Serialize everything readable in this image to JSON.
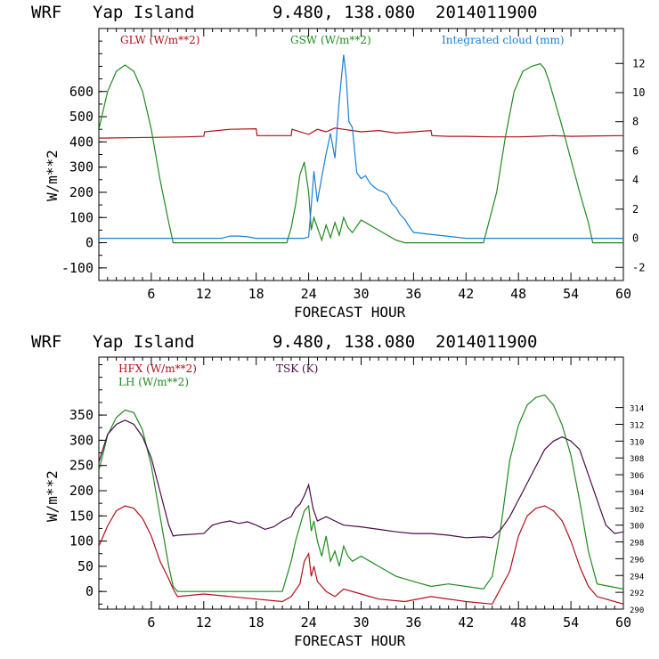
{
  "colors": {
    "red": "#b01018",
    "green": "#1f8a1f",
    "blue": "#1a7fd6",
    "purple": "#4a0a4a",
    "axis": "#000000"
  },
  "chart_data": [
    {
      "type": "line",
      "title": {
        "model": "WRF",
        "location": "Yap Island",
        "coords": "9.480, 138.080",
        "init": "2014011900"
      },
      "xlabel": "FORECAST HOUR",
      "ylabel": "W/m**2",
      "xlim": [
        0,
        60
      ],
      "ylim": [
        -150,
        850
      ],
      "y2lim": [
        -2.9,
        14.4
      ],
      "xticks": [
        "6",
        "12",
        "18",
        "24",
        "30",
        "36",
        "42",
        "48",
        "54",
        "60"
      ],
      "yticks": [
        "-100",
        "0",
        "100",
        "200",
        "300",
        "400",
        "500",
        "600"
      ],
      "y2ticks": [
        "-2",
        "0",
        "2",
        "4",
        "6",
        "8",
        "10",
        "12"
      ],
      "legend": [
        "GLW (W/m**2)",
        "GSW (W/m**2)",
        "Integrated cloud (mm)"
      ],
      "series": [
        {
          "name": "GLW (W/m**2)",
          "color": "red",
          "axis": "left",
          "x": [
            0,
            6,
            10,
            12,
            12.1,
            15,
            18,
            18.1,
            20,
            22,
            22.1,
            24,
            25,
            26,
            27,
            28,
            29,
            30,
            32,
            34,
            36,
            38,
            38.1,
            40,
            42,
            45,
            48,
            50,
            52,
            54,
            57,
            60
          ],
          "y": [
            415,
            418,
            420,
            422,
            440,
            450,
            452,
            425,
            425,
            425,
            450,
            430,
            450,
            440,
            455,
            450,
            445,
            440,
            445,
            435,
            440,
            445,
            425,
            422,
            422,
            420,
            420,
            422,
            425,
            422,
            424,
            425
          ]
        },
        {
          "name": "GSW (W/m**2)",
          "color": "green",
          "axis": "left",
          "x": [
            0,
            1,
            2,
            3,
            4,
            5,
            6,
            7,
            8,
            8.5,
            9,
            18,
            21.5,
            22,
            22.5,
            23,
            23.5,
            24,
            24.3,
            24.6,
            25,
            25.5,
            26,
            26.5,
            27,
            27.5,
            28,
            28.5,
            29,
            30,
            31,
            32,
            33,
            34,
            35,
            36,
            44,
            45.5,
            46.5,
            47.5,
            48.5,
            49.5,
            50.5,
            51,
            51.5,
            52,
            53,
            54,
            55,
            56,
            56.5,
            60
          ],
          "y": [
            450,
            600,
            680,
            705,
            680,
            600,
            450,
            250,
            80,
            0,
            0,
            0,
            0,
            60,
            150,
            270,
            320,
            200,
            50,
            100,
            60,
            10,
            70,
            20,
            80,
            30,
            100,
            60,
            40,
            90,
            70,
            50,
            30,
            10,
            0,
            0,
            0,
            200,
            420,
            600,
            680,
            700,
            710,
            690,
            640,
            580,
            460,
            330,
            200,
            80,
            0,
            0
          ]
        },
        {
          "name": "Integrated cloud (mm)",
          "color": "blue",
          "axis": "right",
          "x": [
            0,
            14,
            15,
            16,
            17,
            18,
            19,
            20,
            21,
            22,
            23,
            23.5,
            24,
            24.3,
            24.6,
            25,
            25.5,
            26,
            26.5,
            27,
            27.5,
            28,
            28.3,
            28.6,
            29,
            29.5,
            30,
            30.5,
            31,
            31.5,
            32,
            32.5,
            33,
            33.5,
            34,
            34.5,
            35,
            35.5,
            36,
            42,
            60
          ],
          "y": [
            0,
            0,
            0.15,
            0.15,
            0.1,
            0,
            0,
            0,
            0,
            0,
            0,
            0,
            0.1,
            2.2,
            4.6,
            2.5,
            4.2,
            5.8,
            7.2,
            5.5,
            9.5,
            12.6,
            11.0,
            8.0,
            7.6,
            4.5,
            4.1,
            4.3,
            3.8,
            3.5,
            3.3,
            3.2,
            3.0,
            2.4,
            2.1,
            1.6,
            1.3,
            0.8,
            0.4,
            0,
            0
          ]
        }
      ]
    },
    {
      "type": "line",
      "title": {
        "model": "WRF",
        "location": "Yap Island",
        "coords": "9.480, 138.080",
        "init": "2014011900"
      },
      "xlabel": "FORECAST HOUR",
      "ylabel": "W/m**2",
      "xlim": [
        0,
        60
      ],
      "ylim": [
        -35,
        465
      ],
      "y2lim": [
        290,
        320
      ],
      "xticks": [
        "6",
        "12",
        "18",
        "24",
        "30",
        "36",
        "42",
        "48",
        "54",
        "60"
      ],
      "yticks": [
        "0",
        "50",
        "100",
        "150",
        "200",
        "250",
        "300",
        "350"
      ],
      "y2ticks": [
        "290",
        "292",
        "294",
        "296",
        "298",
        "300",
        "302",
        "304",
        "306",
        "308",
        "310",
        "312",
        "314"
      ],
      "legend": [
        "HFX (W/m**2)",
        "LH  (W/m**2)",
        "TSK (K)"
      ],
      "series": [
        {
          "name": "HFX (W/m**2)",
          "color": "red",
          "axis": "left",
          "x": [
            0,
            1,
            2,
            3,
            4,
            5,
            6,
            7,
            8,
            8.5,
            9,
            12,
            18,
            21,
            22,
            23,
            23.5,
            24,
            24.3,
            24.6,
            25,
            26,
            27,
            28,
            30,
            32,
            35,
            38,
            42,
            45,
            47,
            48,
            49,
            50,
            51,
            52,
            53,
            54,
            55,
            56,
            57,
            58,
            60
          ],
          "y": [
            90,
            130,
            160,
            170,
            165,
            145,
            110,
            60,
            25,
            5,
            -10,
            -5,
            -15,
            -20,
            -10,
            15,
            60,
            75,
            30,
            50,
            20,
            0,
            -10,
            5,
            -5,
            -15,
            -20,
            -10,
            -20,
            -25,
            40,
            110,
            150,
            165,
            170,
            160,
            140,
            100,
            50,
            10,
            -10,
            -15,
            -25
          ]
        },
        {
          "name": "LH  (W/m**2)",
          "color": "green",
          "axis": "left",
          "x": [
            0,
            1,
            2,
            3,
            4,
            5,
            6,
            7,
            8,
            8.5,
            9,
            12,
            15,
            18,
            21,
            22,
            22.5,
            23,
            23.5,
            24,
            24.3,
            24.6,
            25,
            25.5,
            26,
            26.5,
            27,
            27.5,
            28,
            28.5,
            29,
            30,
            31,
            32,
            33,
            34,
            36,
            38,
            40,
            42,
            44,
            45,
            46,
            47,
            48,
            49,
            50,
            51,
            52,
            53,
            54,
            55,
            56,
            57,
            60
          ],
          "y": [
            240,
            310,
            345,
            360,
            355,
            320,
            250,
            150,
            50,
            10,
            0,
            0,
            0,
            0,
            0,
            60,
            100,
            130,
            160,
            170,
            120,
            140,
            100,
            70,
            110,
            60,
            80,
            50,
            90,
            70,
            60,
            70,
            60,
            50,
            40,
            30,
            20,
            10,
            15,
            10,
            5,
            30,
            130,
            260,
            330,
            370,
            385,
            390,
            370,
            330,
            270,
            180,
            80,
            15,
            5
          ]
        },
        {
          "name": "TSK (K)",
          "color": "purple",
          "axis": "right",
          "x": [
            0,
            1,
            2,
            3,
            4,
            5,
            6,
            7,
            8,
            8.5,
            9,
            12,
            13,
            14,
            15,
            16,
            17,
            18,
            19,
            20,
            21,
            22,
            22.5,
            23,
            23.5,
            24,
            24.5,
            25,
            26,
            27,
            28,
            30,
            32,
            34,
            36,
            38,
            40,
            42,
            44,
            45,
            46,
            47,
            48,
            49,
            50,
            51,
            52,
            53,
            54,
            55,
            56,
            57,
            58,
            59,
            60
          ],
          "y": [
            307.5,
            310.8,
            312.0,
            312.5,
            312.0,
            310.5,
            308,
            304,
            300,
            298.7,
            298.8,
            299,
            300,
            300.3,
            300.5,
            300.2,
            300.4,
            300,
            299.5,
            299.8,
            300.5,
            301,
            302,
            302.5,
            303.5,
            304.8,
            302,
            300.5,
            301,
            300.5,
            300,
            299.8,
            299.5,
            299.2,
            299,
            299,
            298.8,
            298.5,
            298.6,
            298.5,
            299.5,
            301,
            303,
            305,
            307,
            309,
            310,
            310.5,
            310,
            309,
            306,
            303,
            300,
            299,
            299.2
          ]
        }
      ]
    }
  ]
}
